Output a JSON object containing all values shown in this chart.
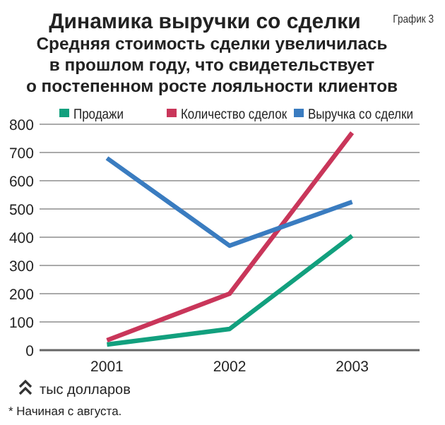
{
  "chart_data": {
    "type": "line",
    "title": "Динамика выручки со сделки",
    "subtitle": [
      "Средняя стоимость сделки увеличилась",
      "в прошлом году, что свидетельствует",
      "о постепенном росте лояльности клиентов"
    ],
    "annotations": [
      "График 3",
      "тыс долларов",
      "* Начиная с августа."
    ],
    "categories": [
      "2001",
      "2002",
      "2003"
    ],
    "series": [
      {
        "name": "Продажи",
        "color": "#12a07e",
        "values": [
          20,
          75,
          405
        ]
      },
      {
        "name": "Количество сделок",
        "color": "#c9365a",
        "values": [
          35,
          200,
          770
        ]
      },
      {
        "name": "Выручка со сделки",
        "color": "#3a7cc0",
        "values": [
          680,
          370,
          525
        ]
      }
    ],
    "ylim": [
      0,
      800
    ],
    "yticks": [
      0,
      100,
      200,
      300,
      400,
      500,
      600,
      700,
      800
    ],
    "grid": "y",
    "legend": "top",
    "marker": "none",
    "line_style": "solid"
  }
}
